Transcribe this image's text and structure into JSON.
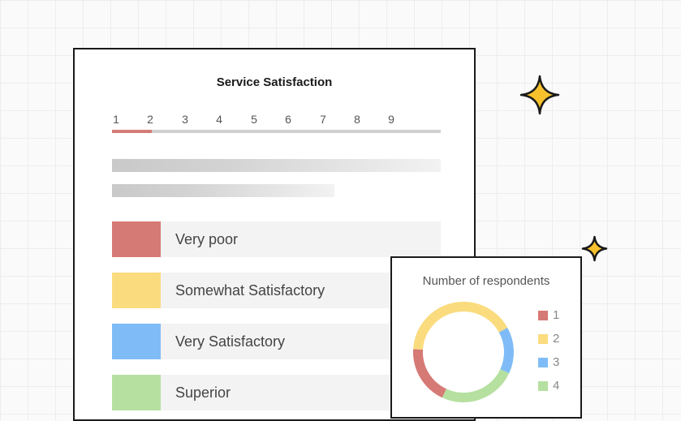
{
  "survey": {
    "title": "Service Satisfaction",
    "scale": [
      "1",
      "2",
      "3",
      "4",
      "5",
      "6",
      "7",
      "8",
      "9"
    ],
    "progress_fraction": 0.12,
    "options": [
      {
        "label": "Very poor",
        "color": "#d67a75"
      },
      {
        "label": "Somewhat Satisfactory",
        "color": "#fadc7f"
      },
      {
        "label": "Very Satisfactory",
        "color": "#7fbcf7"
      },
      {
        "label": "Superior",
        "color": "#b6e0a0"
      }
    ]
  },
  "chart": {
    "title": "Number of respondents",
    "legend": [
      {
        "label": "1",
        "color": "#d67a75"
      },
      {
        "label": "2",
        "color": "#fadc7f"
      },
      {
        "label": "3",
        "color": "#7fbcf7"
      },
      {
        "label": "4",
        "color": "#b6e0a0"
      }
    ]
  },
  "chart_data": {
    "type": "pie",
    "title": "Number of respondents",
    "categories": [
      "1",
      "2",
      "3",
      "4"
    ],
    "values": [
      19,
      41,
      15,
      25
    ],
    "donut": true
  },
  "decor": {
    "sparkle_color": "#f6c12d",
    "sparkle_outline": "#1a1a1a"
  }
}
